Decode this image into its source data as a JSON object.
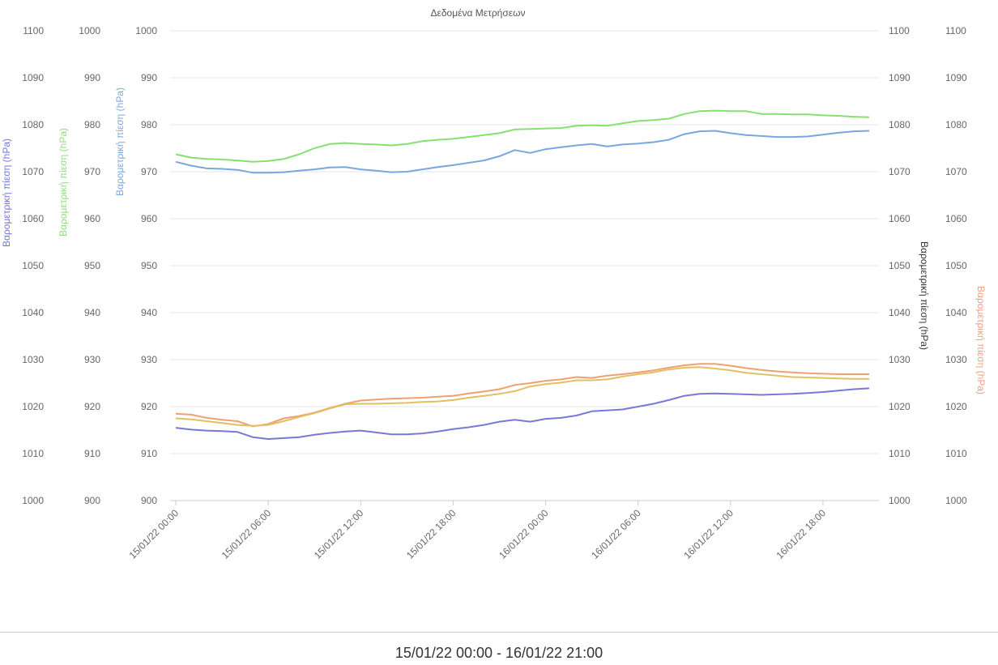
{
  "chart_data": {
    "type": "line",
    "title": "Δεδομένα Μετρήσεων",
    "grid": true,
    "x_tick_labels": [
      "15/01/22 00:00",
      "15/01/22 06:00",
      "15/01/22 12:00",
      "15/01/22 18:00",
      "16/01/22 00:00",
      "16/01/22 06:00",
      "16/01/22 12:00",
      "16/01/22 18:00"
    ],
    "x_range_hours": [
      0,
      45
    ],
    "x_hours": [
      0,
      1,
      2,
      3,
      4,
      5,
      6,
      7,
      8,
      9,
      10,
      11,
      12,
      13,
      14,
      15,
      16,
      17,
      18,
      19,
      20,
      21,
      22,
      23,
      24,
      25,
      26,
      27,
      28,
      29,
      30,
      31,
      32,
      33,
      34,
      35,
      36,
      37,
      38,
      39,
      40,
      41,
      42,
      43,
      44,
      45
    ],
    "y_axes": [
      {
        "id": "ax-far-left",
        "side": "left",
        "min": 1000,
        "max": 1100,
        "ticks": [
          "1000",
          "1010",
          "1020",
          "1030",
          "1040",
          "1050",
          "1060",
          "1070",
          "1080",
          "1090",
          "1100"
        ],
        "title": "Βαρομετρική πίεση (hPa)",
        "color": "#7575d8"
      },
      {
        "id": "ax-left-2",
        "side": "left",
        "min": 900,
        "max": 1000,
        "ticks": [
          "900",
          "910",
          "920",
          "930",
          "940",
          "950",
          "960",
          "970",
          "980",
          "990",
          "1000"
        ],
        "title": "Βαρομετρική πίεση (hPa)",
        "color": "#8ee07a"
      },
      {
        "id": "ax-left-3",
        "side": "left",
        "min": 900,
        "max": 1000,
        "ticks": [
          "900",
          "910",
          "920",
          "930",
          "940",
          "950",
          "960",
          "970",
          "980",
          "990",
          "1000"
        ],
        "title": "Βαρομετρική πίεση (hPa)",
        "color": "#7da7e0"
      },
      {
        "id": "ax-right-1",
        "side": "right",
        "min": 1000,
        "max": 1100,
        "ticks": [
          "1000",
          "1010",
          "1020",
          "1030",
          "1040",
          "1050",
          "1060",
          "1070",
          "1080",
          "1090",
          "1100"
        ],
        "title": "Βαρομετρική πίεση (hPa)",
        "color": "#333333"
      },
      {
        "id": "ax-right-2",
        "side": "right",
        "min": 1000,
        "max": 1100,
        "ticks": [
          "1000",
          "1010",
          "1020",
          "1030",
          "1040",
          "1050",
          "1060",
          "1070",
          "1080",
          "1090",
          "1100"
        ],
        "title": "Βαρομετρική πίεση (hPa)",
        "color": "#f0a080"
      }
    ],
    "series": [
      {
        "axis": "ax-left-2",
        "color": "#86e070",
        "values": [
          973.7,
          973.0,
          972.7,
          972.6,
          972.4,
          972.1,
          972.3,
          972.7,
          973.7,
          975.0,
          975.9,
          976.1,
          975.9,
          975.8,
          975.6,
          975.9,
          976.5,
          976.8,
          977.0,
          977.4,
          977.8,
          978.2,
          979.0,
          979.1,
          979.2,
          979.3,
          979.8,
          979.9,
          979.8,
          980.3,
          980.8,
          981.0,
          981.3,
          982.3,
          982.9,
          983.0,
          982.9,
          982.9,
          982.3,
          982.3,
          982.2,
          982.2,
          982.0,
          981.9,
          981.7,
          981.6
        ]
      },
      {
        "axis": "ax-left-3",
        "color": "#7aa6e0",
        "values": [
          972.1,
          971.3,
          970.7,
          970.6,
          970.4,
          969.8,
          969.8,
          969.9,
          970.2,
          970.5,
          970.9,
          971.0,
          970.5,
          970.2,
          969.9,
          970.0,
          970.5,
          971.0,
          971.4,
          971.9,
          972.4,
          973.3,
          974.6,
          974.0,
          974.8,
          975.2,
          975.6,
          975.9,
          975.4,
          975.8,
          976.0,
          976.3,
          976.8,
          978.0,
          978.6,
          978.7,
          978.2,
          977.8,
          977.6,
          977.4,
          977.4,
          977.5,
          977.9,
          978.3,
          978.6,
          978.7
        ]
      },
      {
        "axis": "ax-right-2",
        "color": "#f0a070",
        "values": [
          1018.5,
          1018.3,
          1017.6,
          1017.2,
          1016.9,
          1015.8,
          1016.3,
          1017.5,
          1018.0,
          1018.7,
          1019.7,
          1020.6,
          1021.3,
          1021.5,
          1021.7,
          1021.8,
          1021.9,
          1022.1,
          1022.3,
          1022.8,
          1023.2,
          1023.7,
          1024.6,
          1025.0,
          1025.5,
          1025.8,
          1026.3,
          1026.1,
          1026.6,
          1026.9,
          1027.3,
          1027.7,
          1028.3,
          1028.8,
          1029.1,
          1029.1,
          1028.7,
          1028.2,
          1027.8,
          1027.5,
          1027.3,
          1027.1,
          1027.0,
          1026.9,
          1026.9,
          1026.9
        ]
      },
      {
        "axis": "ax-right-1",
        "color": "#e0c060",
        "values": [
          1017.5,
          1017.3,
          1016.9,
          1016.5,
          1016.1,
          1015.9,
          1016.1,
          1016.9,
          1017.8,
          1018.6,
          1019.6,
          1020.5,
          1020.6,
          1020.6,
          1020.7,
          1020.8,
          1021.0,
          1021.1,
          1021.4,
          1021.9,
          1022.3,
          1022.7,
          1023.3,
          1024.3,
          1024.8,
          1025.1,
          1025.6,
          1025.6,
          1025.8,
          1026.4,
          1026.9,
          1027.3,
          1027.9,
          1028.3,
          1028.4,
          1028.1,
          1027.7,
          1027.2,
          1026.9,
          1026.6,
          1026.3,
          1026.2,
          1026.1,
          1026.0,
          1025.9,
          1025.9
        ]
      },
      {
        "axis": "ax-far-left",
        "color": "#7878d8",
        "values": [
          1015.5,
          1015.1,
          1014.9,
          1014.8,
          1014.6,
          1013.5,
          1013.1,
          1013.3,
          1013.5,
          1014.0,
          1014.4,
          1014.7,
          1014.9,
          1014.5,
          1014.1,
          1014.1,
          1014.3,
          1014.7,
          1015.2,
          1015.6,
          1016.1,
          1016.8,
          1017.2,
          1016.8,
          1017.4,
          1017.6,
          1018.1,
          1019.0,
          1019.2,
          1019.4,
          1020.0,
          1020.6,
          1021.4,
          1022.3,
          1022.7,
          1022.8,
          1022.7,
          1022.6,
          1022.5,
          1022.6,
          1022.7,
          1022.9,
          1023.1,
          1023.4,
          1023.7,
          1023.9
        ]
      }
    ]
  },
  "footer": {
    "range": "15/01/22 00:00 - 16/01/22 21:00"
  }
}
